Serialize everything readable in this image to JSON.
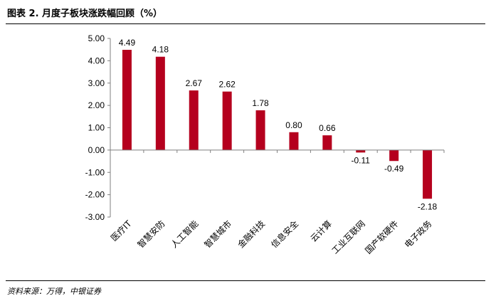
{
  "figure": {
    "title": "图表 2. 月度子板块涨跌幅回顾（%）",
    "source": "资料来源：万得，中银证券"
  },
  "chart_data": {
    "type": "bar",
    "title": "图表 2. 月度子板块涨跌幅回顾（%）",
    "xlabel": "",
    "ylabel": "",
    "categories": [
      "医疗IT",
      "智慧安防",
      "人工智能",
      "智慧城市",
      "金融科技",
      "信息安全",
      "云计算",
      "工业互联网",
      "国产软硬件",
      "电子政务"
    ],
    "values": [
      4.49,
      4.18,
      2.67,
      2.62,
      1.78,
      0.8,
      0.66,
      -0.11,
      -0.49,
      -2.18
    ],
    "value_labels": [
      "4.49",
      "4.18",
      "2.67",
      "2.62",
      "1.78",
      "0.80",
      "0.66",
      "-0.11",
      "-0.49",
      "-2.18"
    ],
    "ylim": [
      -3,
      5
    ],
    "yticks": [
      5,
      4,
      3,
      2,
      1,
      0,
      -1,
      -2,
      -3
    ],
    "ytick_labels": [
      "5.00",
      "4.00",
      "3.00",
      "2.00",
      "1.00",
      "0.00",
      "-1.00",
      "-2.00",
      "-3.00"
    ],
    "grid": false,
    "legend": "none",
    "bar_color": "#B5001E"
  }
}
